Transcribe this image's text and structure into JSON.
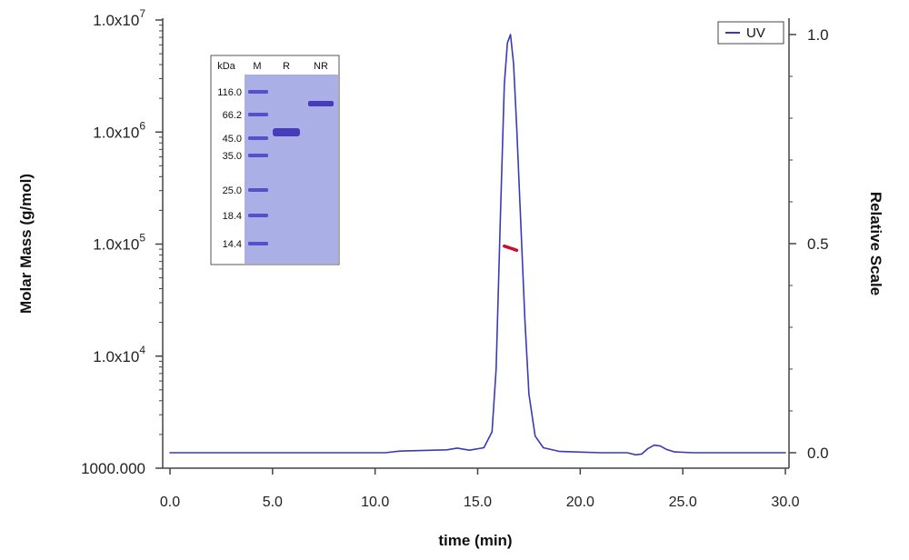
{
  "chart_data": {
    "type": "line",
    "xlabel": "time (min)",
    "ylabel_left": "Molar Mass (g/mol)",
    "ylabel_right": "Relative Scale",
    "xlim": [
      0,
      30
    ],
    "x_ticks": [
      "0.0",
      "5.0",
      "10.0",
      "15.0",
      "20.0",
      "25.0",
      "30.0"
    ],
    "y_left_scale": "log",
    "y_left_ticks": [
      {
        "value": 1000,
        "base": "1000.000",
        "exp": ""
      },
      {
        "value": 10000,
        "base": "1.0x10",
        "exp": "4"
      },
      {
        "value": 100000,
        "base": "1.0x10",
        "exp": "5"
      },
      {
        "value": 1000000,
        "base": "1.0x10",
        "exp": "6"
      },
      {
        "value": 10000000,
        "base": "1.0x10",
        "exp": "7"
      }
    ],
    "y_right_ticks": [
      "0.0",
      "0.5",
      "1.0"
    ],
    "legend": {
      "position": "top-right",
      "label": "UV"
    },
    "series": [
      {
        "name": "UV",
        "axis": "right",
        "color": "#3a3ab8",
        "x": [
          0,
          10.5,
          11.2,
          13.5,
          14.0,
          14.6,
          15.3,
          15.7,
          15.9,
          16.1,
          16.3,
          16.45,
          16.6,
          16.75,
          16.9,
          17.1,
          17.3,
          17.5,
          17.8,
          18.2,
          19.0,
          21.0,
          22.3,
          22.7,
          23.0,
          23.3,
          23.6,
          23.9,
          24.2,
          24.6,
          25.5,
          30.0
        ],
        "y": [
          0.0,
          0.0,
          0.004,
          0.007,
          0.011,
          0.006,
          0.012,
          0.05,
          0.2,
          0.55,
          0.88,
          0.98,
          1.0,
          0.93,
          0.78,
          0.55,
          0.32,
          0.14,
          0.04,
          0.012,
          0.003,
          0.0,
          0.0,
          -0.005,
          -0.003,
          0.01,
          0.018,
          0.016,
          0.008,
          0.002,
          0.0,
          0.0
        ]
      },
      {
        "name": "Molar Mass",
        "axis": "left",
        "color": "#c8102e",
        "x": [
          16.3,
          16.45,
          16.6,
          16.75,
          16.9
        ],
        "y": [
          96000,
          94000,
          92000,
          90000,
          88000
        ]
      }
    ],
    "inset_gel": {
      "header": [
        "kDa",
        "M",
        "R",
        "NR"
      ],
      "markers": [
        "116.0",
        "66.2",
        "45.0",
        "35.0",
        "25.0",
        "18.4",
        "14.4"
      ]
    }
  },
  "colors": {
    "line": "#3a3ab8",
    "mass": "#c8102e",
    "gel_bg": "#aab0e6",
    "band": "#3b2fb8"
  }
}
